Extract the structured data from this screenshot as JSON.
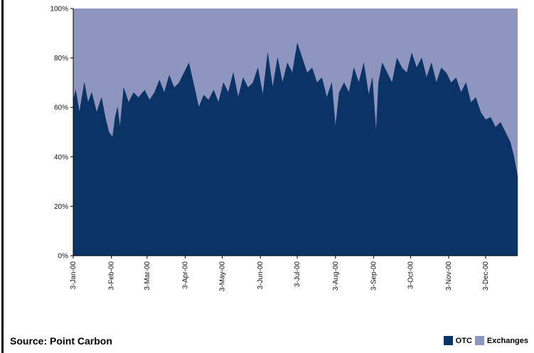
{
  "chart_data": {
    "type": "area",
    "stacked": true,
    "normalized": true,
    "ylim": [
      0,
      100
    ],
    "yticks": [
      0,
      20,
      40,
      60,
      80,
      100
    ],
    "ytick_labels": [
      "0%",
      "20%",
      "40%",
      "60%",
      "80%",
      "100%"
    ],
    "xlim": [
      "2000-01-03",
      "2000-12-29"
    ],
    "xtick_labels": [
      "3-Jan-00",
      "3-Feb-00",
      "3-Mar-00",
      "3-Apr-00",
      "3-May-00",
      "3-Jun-00",
      "3-Jul-00",
      "3-Aug-00",
      "3-Sep-00",
      "3-Oct-00",
      "3-Nov-00",
      "3-Dec-00"
    ],
    "xticks": [
      "2000-01-03",
      "2000-02-03",
      "2000-03-03",
      "2000-04-03",
      "2000-05-03",
      "2000-06-03",
      "2000-07-03",
      "2000-08-03",
      "2000-09-03",
      "2000-10-03",
      "2000-11-03",
      "2000-12-03"
    ],
    "series": [
      {
        "name": "OTC",
        "color": "#0c3366",
        "x": [
          "2000-01-03",
          "2000-01-05",
          "2000-01-08",
          "2000-01-12",
          "2000-01-15",
          "2000-01-18",
          "2000-01-22",
          "2000-01-26",
          "2000-01-29",
          "2000-02-01",
          "2000-02-04",
          "2000-02-06",
          "2000-02-08",
          "2000-02-10",
          "2000-02-13",
          "2000-02-17",
          "2000-02-21",
          "2000-02-25",
          "2000-03-01",
          "2000-03-05",
          "2000-03-09",
          "2000-03-13",
          "2000-03-17",
          "2000-03-21",
          "2000-03-25",
          "2000-03-29",
          "2000-04-02",
          "2000-04-06",
          "2000-04-10",
          "2000-04-14",
          "2000-04-18",
          "2000-04-22",
          "2000-04-26",
          "2000-04-30",
          "2000-05-04",
          "2000-05-08",
          "2000-05-12",
          "2000-05-16",
          "2000-05-20",
          "2000-05-24",
          "2000-05-28",
          "2000-06-01",
          "2000-06-05",
          "2000-06-09",
          "2000-06-13",
          "2000-06-17",
          "2000-06-21",
          "2000-06-25",
          "2000-06-29",
          "2000-07-03",
          "2000-07-07",
          "2000-07-11",
          "2000-07-15",
          "2000-07-19",
          "2000-07-23",
          "2000-07-27",
          "2000-07-31",
          "2000-08-03",
          "2000-08-06",
          "2000-08-10",
          "2000-08-14",
          "2000-08-18",
          "2000-08-22",
          "2000-08-26",
          "2000-08-30",
          "2000-09-02",
          "2000-09-05",
          "2000-09-07",
          "2000-09-10",
          "2000-09-14",
          "2000-09-18",
          "2000-09-22",
          "2000-09-26",
          "2000-09-30",
          "2000-10-04",
          "2000-10-08",
          "2000-10-12",
          "2000-10-16",
          "2000-10-20",
          "2000-10-24",
          "2000-10-28",
          "2000-11-01",
          "2000-11-05",
          "2000-11-09",
          "2000-11-13",
          "2000-11-17",
          "2000-11-21",
          "2000-11-25",
          "2000-11-29",
          "2000-12-03",
          "2000-12-07",
          "2000-12-11",
          "2000-12-15",
          "2000-12-19",
          "2000-12-23",
          "2000-12-26",
          "2000-12-29"
        ],
        "values": [
          63,
          67,
          58,
          70,
          62,
          66,
          58,
          64,
          56,
          50,
          48,
          56,
          60,
          52,
          68,
          62,
          66,
          64,
          67,
          63,
          66,
          71,
          66,
          73,
          68,
          70,
          74,
          78,
          69,
          60,
          65,
          63,
          67,
          62,
          70,
          66,
          74,
          64,
          72,
          68,
          70,
          76,
          65,
          82,
          68,
          80,
          70,
          78,
          74,
          86,
          80,
          74,
          76,
          70,
          72,
          64,
          70,
          52,
          66,
          70,
          66,
          76,
          70,
          78,
          65,
          72,
          50,
          70,
          78,
          74,
          70,
          80,
          76,
          74,
          82,
          76,
          80,
          72,
          78,
          70,
          76,
          74,
          70,
          72,
          66,
          70,
          62,
          64,
          58,
          55,
          56,
          52,
          54,
          50,
          46,
          40,
          32
        ]
      },
      {
        "name": "Exchanges",
        "color": "#8e96bf",
        "x": "same as OTC",
        "values": "remainder to 100%"
      }
    ],
    "legend": [
      "OTC",
      "Exchanges"
    ],
    "legend_placement": "bottom-right",
    "grid": false
  },
  "footer": {
    "source_label": "Source: Point Carbon"
  },
  "legend": {
    "otc_label": "OTC",
    "exchanges_label": "Exchanges",
    "otc_color": "#0c3366",
    "exchanges_color": "#8e96bf"
  }
}
